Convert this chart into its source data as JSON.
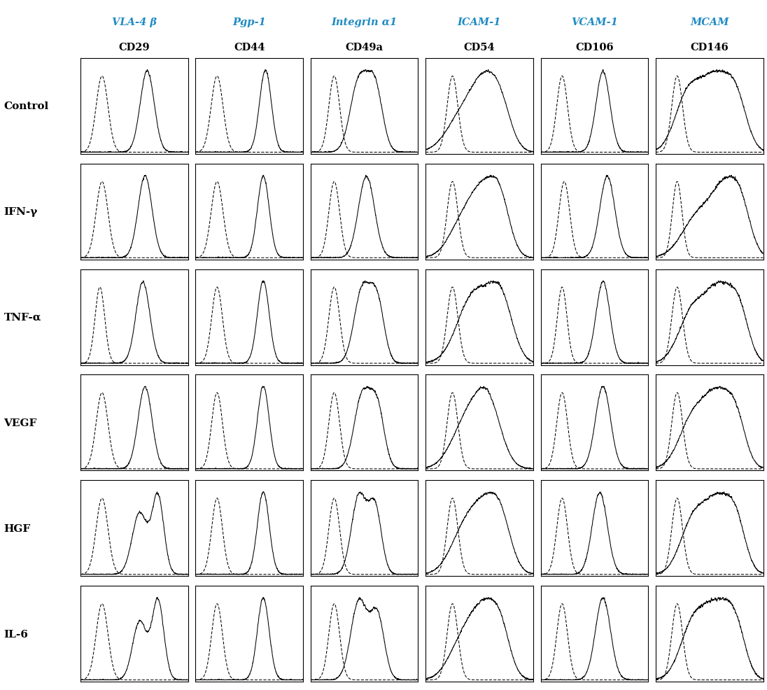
{
  "col_labels_top": [
    "VLA-4 β",
    "Pgp-1",
    "Integrin α1",
    "ICAM-1",
    "VCAM-1",
    "MCAM"
  ],
  "col_labels_bottom": [
    "CD29",
    "CD44",
    "CD49a",
    "CD54",
    "CD106",
    "CD146"
  ],
  "row_labels": [
    "Control",
    "IFN-γ",
    "TNF-α",
    "VEGF",
    "HGF",
    "IL-6"
  ],
  "top_label_color": "#1e8bc3",
  "bottom_label_color": "#000000",
  "row_label_color": "#000000",
  "background_color": "#ffffff",
  "n_rows": 6,
  "n_cols": 6,
  "figsize": [
    10.96,
    9.87
  ],
  "dpi": 100
}
